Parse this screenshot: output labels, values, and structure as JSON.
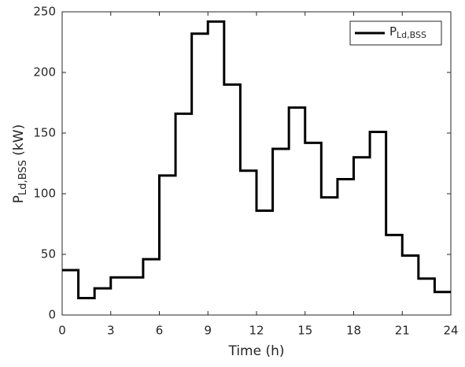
{
  "chart_data": {
    "type": "stairs",
    "xlabel": "Time (h)",
    "ylabel": {
      "main": "P",
      "sub": "Ld,BSS",
      "unit": " (kW)"
    },
    "x": [
      0,
      1,
      2,
      3,
      4,
      5,
      6,
      7,
      8,
      9,
      10,
      11,
      12,
      13,
      14,
      15,
      16,
      17,
      18,
      19,
      20,
      21,
      22,
      23,
      24
    ],
    "series": [
      {
        "name": "P",
        "name_sub": "Ld,BSS",
        "color": "#000000",
        "values": [
          37,
          14,
          22,
          31,
          31,
          46,
          115,
          166,
          232,
          242,
          190,
          119,
          86,
          137,
          171,
          142,
          97,
          112,
          130,
          151,
          66,
          49,
          30,
          19,
          19
        ]
      }
    ],
    "xlim": [
      0,
      24
    ],
    "xticks": [
      0,
      3,
      6,
      9,
      12,
      15,
      18,
      21,
      24
    ],
    "ylim": [
      0,
      250
    ],
    "yticks": [
      0,
      50,
      100,
      150,
      200,
      250
    ],
    "legend": "upper right",
    "grid": false
  }
}
